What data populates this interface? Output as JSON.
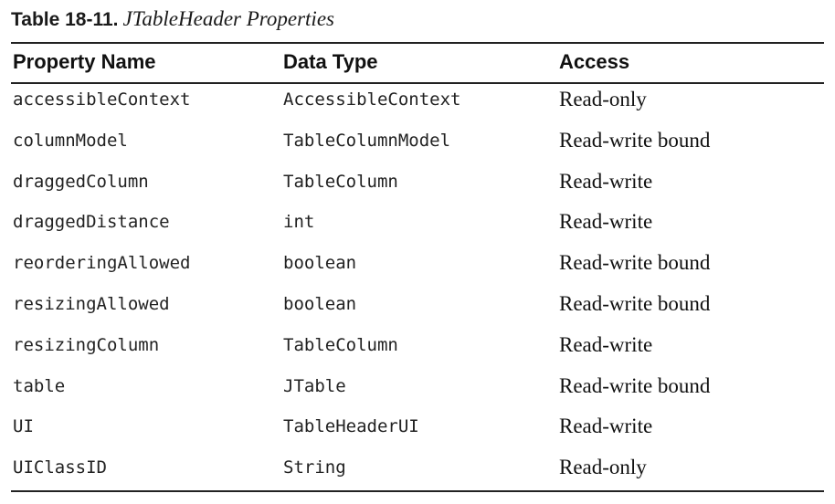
{
  "caption": {
    "label": "Table 18-11.",
    "title": "JTableHeader Properties"
  },
  "table": {
    "headers": [
      "Property Name",
      "Data Type",
      "Access"
    ],
    "rows": [
      [
        "accessibleContext",
        "AccessibleContext",
        "Read-only"
      ],
      [
        "columnModel",
        "TableColumnModel",
        "Read-write bound"
      ],
      [
        "draggedColumn",
        "TableColumn",
        "Read-write"
      ],
      [
        "draggedDistance",
        "int",
        "Read-write"
      ],
      [
        "reorderingAllowed",
        "boolean",
        "Read-write bound"
      ],
      [
        "resizingAllowed",
        "boolean",
        "Read-write bound"
      ],
      [
        "resizingColumn",
        "TableColumn",
        "Read-write"
      ],
      [
        "table",
        "JTable",
        "Read-write bound"
      ],
      [
        "UI",
        "TableHeaderUI",
        "Read-write"
      ],
      [
        "UIClassID",
        "String",
        "Read-only"
      ]
    ]
  }
}
